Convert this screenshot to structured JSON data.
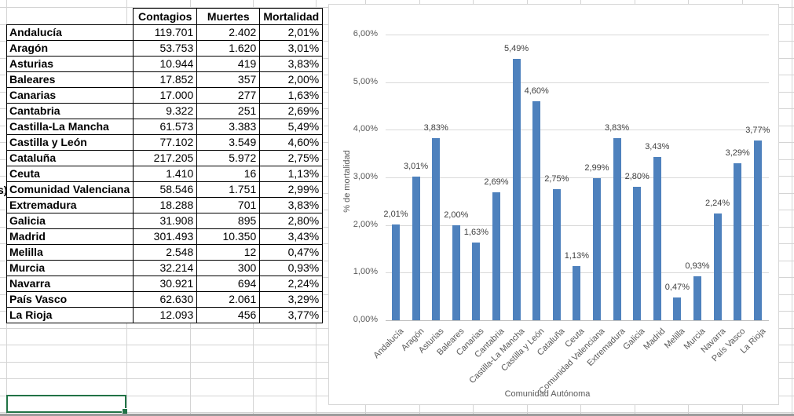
{
  "table": {
    "headers": [
      "",
      "Contagios",
      "Muertes",
      "Mortalidad"
    ],
    "rows": [
      [
        "Andalucía",
        "119.701",
        "2.402",
        "2,01%"
      ],
      [
        "Aragón",
        "53.753",
        "1.620",
        "3,01%"
      ],
      [
        "Asturias",
        "10.944",
        "419",
        "3,83%"
      ],
      [
        "Baleares",
        "17.852",
        "357",
        "2,00%"
      ],
      [
        "Canarias",
        "17.000",
        "277",
        "1,63%"
      ],
      [
        "Cantabria",
        "9.322",
        "251",
        "2,69%"
      ],
      [
        "Castilla-La Mancha",
        "61.573",
        "3.383",
        "5,49%"
      ],
      [
        "Castilla y León",
        "77.102",
        "3.549",
        "4,60%"
      ],
      [
        "Cataluña",
        "217.205",
        "5.972",
        "2,75%"
      ],
      [
        "Ceuta",
        "1.410",
        "16",
        "1,13%"
      ],
      [
        "Comunidad Valenciana",
        "58.546",
        "1.751",
        "2,99%"
      ],
      [
        "Extremadura",
        "18.288",
        "701",
        "3,83%"
      ],
      [
        "Galicia",
        "31.908",
        "895",
        "2,80%"
      ],
      [
        "Madrid",
        "301.493",
        "10.350",
        "3,43%"
      ],
      [
        "Melilla",
        "2.548",
        "12",
        "0,47%"
      ],
      [
        "Murcia",
        "32.214",
        "300",
        "0,93%"
      ],
      [
        "Navarra",
        "30.921",
        "694",
        "2,24%"
      ],
      [
        "País Vasco",
        "62.630",
        "2.061",
        "3,29%"
      ],
      [
        "La Rioja",
        "12.093",
        "456",
        "3,77%"
      ]
    ],
    "left_overflow_fragment": "s)"
  },
  "chart_data": {
    "type": "bar",
    "title": "",
    "xlabel": "Comunidad Autónoma",
    "ylabel": "% de mortalidad",
    "categories": [
      "Andalucía",
      "Aragón",
      "Asturias",
      "Baleares",
      "Canarias",
      "Cantabria",
      "Castilla-La Mancha",
      "Castilla y León",
      "Cataluña",
      "Ceuta",
      "Comunidad Valenciana",
      "Extremadura",
      "Galicia",
      "Madrid",
      "Melilla",
      "Murcia",
      "Navarra",
      "País Vasco",
      "La Rioja"
    ],
    "values": [
      2.01,
      3.01,
      3.83,
      2.0,
      1.63,
      2.69,
      5.49,
      4.6,
      2.75,
      1.13,
      2.99,
      3.83,
      2.8,
      3.43,
      0.47,
      0.93,
      2.24,
      3.29,
      3.77
    ],
    "data_labels": [
      "2,01%",
      "3,01%",
      "3,83%",
      "2,00%",
      "1,63%",
      "2,69%",
      "5,49%",
      "4,60%",
      "2,75%",
      "1,13%",
      "2,99%",
      "3,83%",
      "2,80%",
      "3,43%",
      "0,47%",
      "0,93%",
      "2,24%",
      "3,29%",
      "3,77%"
    ],
    "y_tick_labels": [
      "0,00%",
      "1,00%",
      "2,00%",
      "3,00%",
      "4,00%",
      "5,00%",
      "6,00%"
    ],
    "y_tick_values": [
      0,
      1,
      2,
      3,
      4,
      5,
      6
    ],
    "ylim": [
      0,
      6.6
    ],
    "grid": true,
    "legend": "none",
    "bar_color": "#4e81bd",
    "gridline_color": "#d9d9d9",
    "axis_line_color": "#bfbfbf",
    "axis_text_color": "#595959",
    "data_label_color": "#404040"
  }
}
